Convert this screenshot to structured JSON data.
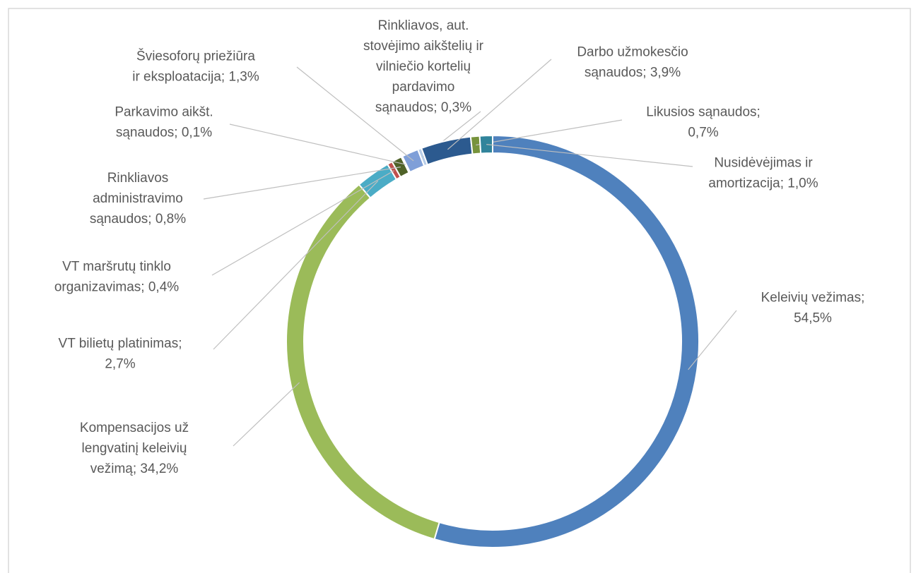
{
  "chart_data": {
    "type": "donut",
    "values": [
      54.5,
      34.2,
      2.7,
      0.4,
      0.8,
      0.1,
      1.3,
      0.3,
      3.9,
      0.7,
      1.0
    ],
    "value_labels": [
      "Keleivių vežimas; 54,5%",
      "Kompensacijos už lengvatinį keleivių vežimą; 34,2%",
      "VT bilietų platinimas; 2,7%",
      "VT maršrutų tinklo organizavimas; 0,4%",
      "Rinkliavos administravimo sąnaudos; 0,8%",
      "Parkavimo aikšt. sąnaudos; 0,1%",
      "Šviesoforų priežiūra ir eksploatacija; 1,3%",
      "Rinkliavos, aut. stovėjimo aikštelių ir vilniečio kortelių pardavimo sąnaudos; 0,3%",
      "Darbo užmokesčio sąnaudos; 3,9%",
      "Likusios sąnaudos; 0,7%",
      "Nusidėvėjimas ir amortizacija; 1,0%"
    ],
    "colors": [
      "#4f81bd",
      "#9bbb59",
      "#4bacc6",
      "#c0504d",
      "#4f6228",
      "#1f497d",
      "#7f9fd8",
      "#b7cde8",
      "#2c5a8f",
      "#77933c",
      "#31849b"
    ]
  }
}
